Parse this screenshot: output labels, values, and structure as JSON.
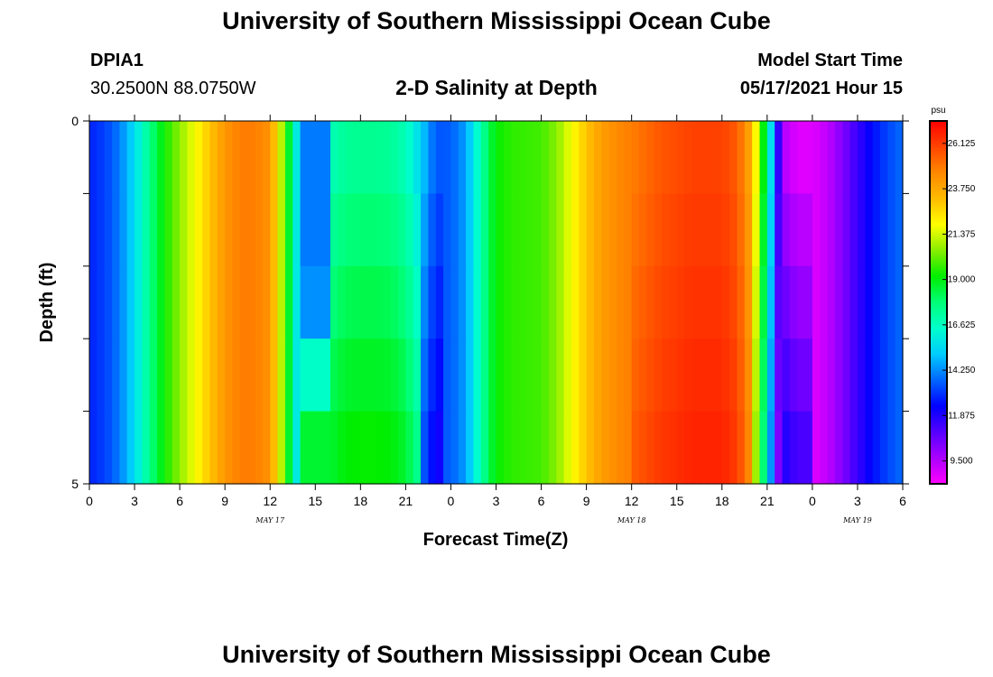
{
  "header": {
    "title": "University of Southern Mississippi Ocean Cube",
    "station_id": "DPIA1",
    "location": "30.2500N  88.0750W",
    "start_time_label": "Model Start Time",
    "start_time_value": "05/17/2021 Hour 15"
  },
  "footer": {
    "title": "University of Southern Mississippi Ocean Cube"
  },
  "chart_data": {
    "type": "heatmap",
    "title": "2-D Salinity at Depth",
    "xlabel": "Forecast Time(Z)",
    "ylabel": "Depth (ft)",
    "x_tick_labels": [
      "0",
      "3",
      "6",
      "9",
      "12",
      "15",
      "18",
      "21",
      "0",
      "3",
      "6",
      "9",
      "12",
      "15",
      "18",
      "21",
      "0",
      "3",
      "6"
    ],
    "date_labels": [
      {
        "text": "MAY 17",
        "at_tick": 4
      },
      {
        "text": "MAY 18",
        "at_tick": 12
      },
      {
        "text": "MAY 19",
        "at_tick": 17
      }
    ],
    "y_tick_labels": [
      "0",
      "5"
    ],
    "ylim": [
      0,
      5
    ],
    "hours_total": 54,
    "colorbar": {
      "unit": "psu",
      "tick_labels": [
        "26.125",
        "23.750",
        "21.375",
        "19.000",
        "16.625",
        "14.250",
        "11.875",
        "9.500"
      ],
      "min": 8.3,
      "max": 27.3,
      "colors": [
        "#ff00ff",
        "#aa00ff",
        "#5500ff",
        "#0000ff",
        "#0066ff",
        "#00ccff",
        "#00ffcc",
        "#00ff77",
        "#00ee00",
        "#88ee00",
        "#ffff00",
        "#ffbb00",
        "#ff8800",
        "#ff4400",
        "#ff0000"
      ]
    },
    "depth_layers": 5,
    "surface_profile": [
      {
        "x": 0,
        "v": 12.8
      },
      {
        "x": 1,
        "v": 13.2
      },
      {
        "x": 2,
        "v": 14.0
      },
      {
        "x": 3,
        "v": 15.5
      },
      {
        "x": 4,
        "v": 17.5
      },
      {
        "x": 5,
        "v": 19.3
      },
      {
        "x": 6,
        "v": 20.6
      },
      {
        "x": 7,
        "v": 21.8
      },
      {
        "x": 8,
        "v": 23.0
      },
      {
        "x": 9,
        "v": 24.2
      },
      {
        "x": 10,
        "v": 24.8
      },
      {
        "x": 11,
        "v": 24.8
      },
      {
        "x": 12,
        "v": 24.3
      },
      {
        "x": 13,
        "v": 20.0
      },
      {
        "x": 14,
        "v": 14.5
      },
      {
        "x": 15,
        "v": 15.2
      },
      {
        "x": 16,
        "v": 16.8
      },
      {
        "x": 17,
        "v": 17.3
      },
      {
        "x": 18,
        "v": 17.4
      },
      {
        "x": 19,
        "v": 17.4
      },
      {
        "x": 20,
        "v": 17.3
      },
      {
        "x": 21,
        "v": 16.8
      },
      {
        "x": 22,
        "v": 15.3
      },
      {
        "x": 23,
        "v": 13.5
      },
      {
        "x": 24,
        "v": 13.6
      },
      {
        "x": 25,
        "v": 14.5
      },
      {
        "x": 26,
        "v": 17.0
      },
      {
        "x": 27,
        "v": 19.2
      },
      {
        "x": 28,
        "v": 19.6
      },
      {
        "x": 29,
        "v": 19.7
      },
      {
        "x": 30,
        "v": 19.8
      },
      {
        "x": 31,
        "v": 20.5
      },
      {
        "x": 32,
        "v": 21.8
      },
      {
        "x": 33,
        "v": 23.0
      },
      {
        "x": 34,
        "v": 24.0
      },
      {
        "x": 35,
        "v": 24.5
      },
      {
        "x": 36,
        "v": 24.8
      },
      {
        "x": 37,
        "v": 25.2
      },
      {
        "x": 38,
        "v": 25.6
      },
      {
        "x": 39,
        "v": 25.8
      },
      {
        "x": 40,
        "v": 26.0
      },
      {
        "x": 41,
        "v": 26.0
      },
      {
        "x": 42,
        "v": 26.0
      },
      {
        "x": 43,
        "v": 25.5
      },
      {
        "x": 44,
        "v": 23.5
      },
      {
        "x": 45,
        "v": 17.5
      },
      {
        "x": 46,
        "v": 9.6
      },
      {
        "x": 47,
        "v": 8.8
      },
      {
        "x": 48,
        "v": 8.8
      },
      {
        "x": 49,
        "v": 9.3
      },
      {
        "x": 50,
        "v": 10.3
      },
      {
        "x": 51,
        "v": 11.5
      },
      {
        "x": 52,
        "v": 12.5
      },
      {
        "x": 53,
        "v": 13.3
      },
      {
        "x": 54,
        "v": 13.8
      }
    ]
  }
}
